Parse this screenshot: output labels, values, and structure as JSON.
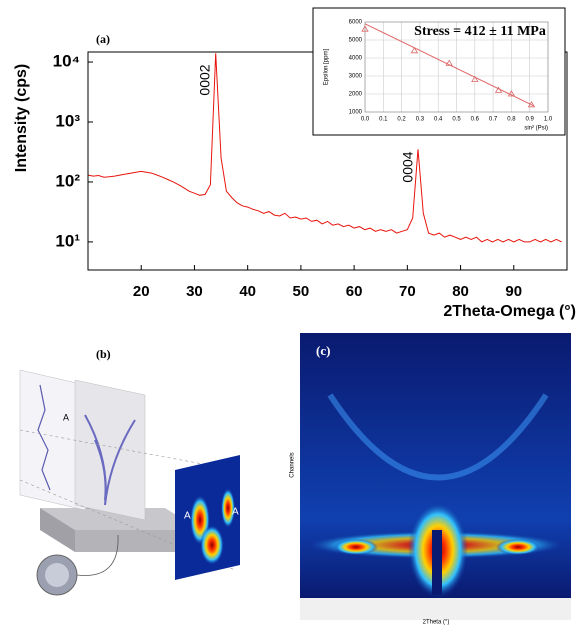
{
  "chart_data": [
    {
      "type": "line",
      "log_y": true,
      "annotations": [
        "(a)",
        "0002",
        "0004"
      ],
      "xlabel": "2Theta-Omega (°)",
      "ylabel": "Intensity (cps)",
      "x": [
        10,
        11,
        12,
        13,
        14,
        15,
        16,
        17,
        18,
        19,
        20,
        21,
        22,
        23,
        24,
        25,
        26,
        27,
        28,
        29,
        30,
        31,
        32,
        33,
        34,
        35,
        36,
        37,
        38,
        39,
        40,
        41,
        42,
        43,
        44,
        45,
        46,
        47,
        48,
        49,
        50,
        51,
        52,
        53,
        54,
        55,
        56,
        57,
        58,
        59,
        60,
        61,
        62,
        63,
        64,
        65,
        66,
        67,
        68,
        69,
        70,
        71,
        72,
        73,
        74,
        75,
        76,
        77,
        78,
        79,
        80,
        81,
        82,
        83,
        84,
        85,
        86,
        87,
        88,
        89,
        90,
        91,
        92,
        93,
        94,
        95,
        96,
        97,
        98,
        99
      ],
      "series": [
        {
          "color": "#e8140c",
          "values": [
            130,
            125,
            128,
            120,
            122,
            125,
            130,
            135,
            140,
            145,
            150,
            145,
            140,
            130,
            120,
            110,
            100,
            90,
            80,
            70,
            65,
            60,
            62,
            90,
            14000,
            250,
            70,
            55,
            45,
            40,
            38,
            35,
            33,
            30,
            32,
            28,
            27,
            30,
            25,
            26,
            24,
            25,
            22,
            23,
            20,
            22,
            19,
            20,
            18,
            19,
            17,
            18,
            16,
            17,
            15,
            16,
            15,
            16,
            14,
            15,
            16,
            25,
            350,
            30,
            14,
            13,
            14,
            12,
            13,
            12,
            11,
            12,
            11,
            12,
            10,
            11,
            10,
            11,
            10,
            11,
            10,
            11,
            10,
            10,
            11,
            10,
            11,
            10,
            11,
            10
          ]
        }
      ],
      "xlim": [
        10,
        100
      ],
      "xticks": [
        20,
        30,
        40,
        50,
        60,
        70,
        80,
        90
      ],
      "ylim": [
        3.4,
        14700
      ],
      "yticks": [
        {
          "value": 10,
          "label": "10¹"
        },
        {
          "value": 100,
          "label": "10²"
        },
        {
          "value": 1000,
          "label": "10³"
        },
        {
          "value": 10000,
          "label": "10⁴"
        }
      ]
    },
    {
      "type": "scatter",
      "title": "Stress = 412 ± 11 MPa",
      "xlabel": "sin² (Psi)",
      "ylabel": "Epsilon [ppm]",
      "x": [
        0.0,
        0.27,
        0.46,
        0.6,
        0.73,
        0.8,
        0.91
      ],
      "values": [
        5600,
        4400,
        3700,
        2800,
        2200,
        2000,
        1400
      ],
      "color": "#e06666",
      "fit": {
        "x": [
          0.0,
          0.92
        ],
        "values": [
          5900,
          1350
        ]
      },
      "xlim": [
        0,
        1
      ],
      "ylim": [
        1000,
        6000
      ],
      "grid": true,
      "xticks": [
        {
          "value": 0,
          "label": "0.0"
        },
        0.1,
        0.2,
        0.3,
        0.4,
        0.5,
        0.6,
        0.7,
        0.8,
        0.9,
        {
          "value": 1,
          "label": "1.0"
        }
      ],
      "yticks": [
        1000,
        2000,
        3000,
        4000,
        5000,
        6000
      ]
    }
  ],
  "panels": {
    "b": {
      "label": "(b)",
      "markers": [
        "A",
        "A",
        "A"
      ]
    },
    "c": {
      "label": "(c)",
      "ylabel": "Channels",
      "xlabel": "2Theta (°)"
    }
  }
}
